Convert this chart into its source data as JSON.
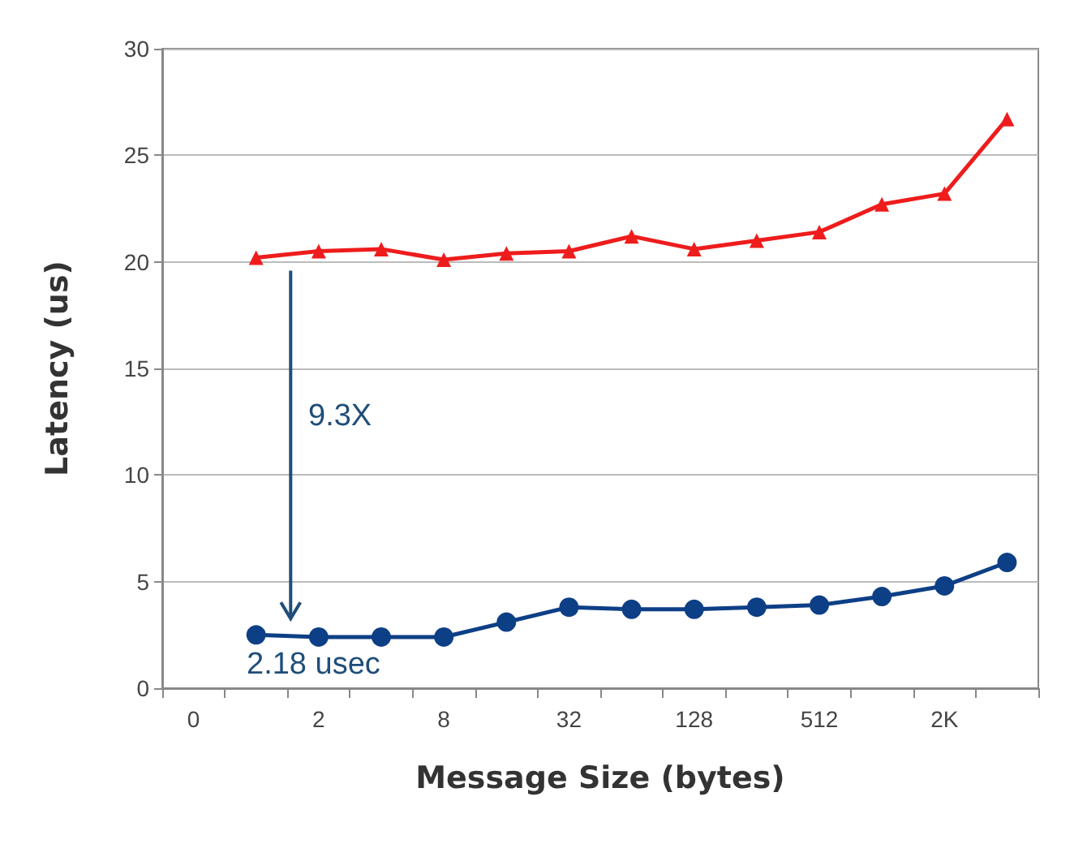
{
  "chart_data": {
    "type": "line",
    "xlabel": "Message Size (bytes)",
    "ylabel": "Latency (us)",
    "categories": [
      "0",
      null,
      "2",
      null,
      "8",
      null,
      "32",
      null,
      "128",
      null,
      "512",
      null,
      "2K",
      null
    ],
    "series": [
      {
        "color": "#ee1c1c",
        "marker": "triangle",
        "values": [
          null,
          20.2,
          20.5,
          20.6,
          20.1,
          20.4,
          20.5,
          21.2,
          20.6,
          21.0,
          21.4,
          22.7,
          23.2,
          26.7
        ]
      },
      {
        "color": "#0d3f86",
        "marker": "circle",
        "values": [
          null,
          2.5,
          2.4,
          2.4,
          2.4,
          3.1,
          3.8,
          3.7,
          3.7,
          3.8,
          3.9,
          4.3,
          4.8,
          5.9
        ]
      }
    ],
    "ylim": [
      0,
      30
    ],
    "yticks": [
      0,
      5,
      10,
      15,
      20,
      25,
      30
    ],
    "grid": "y",
    "annotations": [
      "9.3X",
      "2.18 usec"
    ]
  }
}
